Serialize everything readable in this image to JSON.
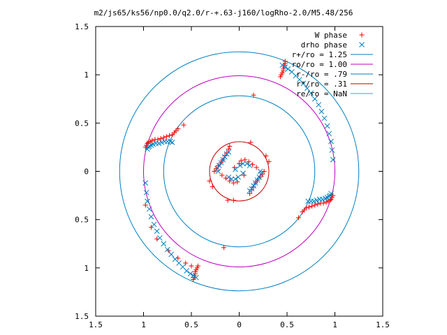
{
  "chart_data": {
    "type": "scatter",
    "title": "m2/js65/ks56/np0.0/q2.0/r-+.63-j160/logRho-2.0/M5.48/256",
    "xlim": [
      -1.5,
      1.5
    ],
    "ylim": [
      -1.5,
      1.5
    ],
    "xticks": [
      -1.5,
      -1,
      -0.5,
      0,
      0.5,
      1,
      1.5
    ],
    "xtick_labels": [
      "1.5",
      "1",
      "0.5",
      "0",
      "0.5",
      "1",
      "1.5"
    ],
    "yticks": [
      1.5,
      1,
      0.5,
      0,
      -0.5,
      -1,
      -1.5
    ],
    "ytick_labels": [
      "1.5",
      "1",
      "0.5",
      "0",
      "0.5",
      "1",
      "1.5"
    ],
    "grid": false,
    "legend_position": "top-right",
    "circles": [
      {
        "name": "r+/ro = 1.25",
        "radius": 1.25,
        "color": "#0080c0"
      },
      {
        "name": "ro/ro = 1.00",
        "radius": 1.0,
        "color": "#c000c0"
      },
      {
        "name": "r-/ro = .79",
        "radius": 0.79,
        "color": "#0080c0"
      },
      {
        "name": "r*/ro = .31",
        "radius": 0.31,
        "color": "#c00000"
      },
      {
        "name": "re/ro = NaN",
        "radius": null,
        "color": "#00c0c0"
      }
    ],
    "series": [
      {
        "name": "W phase",
        "marker": "plus",
        "color": "#ff0000",
        "points": [
          [
            -0.98,
            0.25
          ],
          [
            -0.97,
            0.27
          ],
          [
            -0.96,
            0.29
          ],
          [
            -0.95,
            0.3
          ],
          [
            -0.93,
            0.31
          ],
          [
            -0.91,
            0.32
          ],
          [
            -0.88,
            0.33
          ],
          [
            -0.85,
            0.33
          ],
          [
            -0.82,
            0.34
          ],
          [
            -0.79,
            0.35
          ],
          [
            -0.76,
            0.36
          ],
          [
            -0.73,
            0.37
          ],
          [
            -0.7,
            0.38
          ],
          [
            -0.68,
            0.4
          ],
          [
            -0.66,
            0.42
          ],
          [
            -0.64,
            0.44
          ],
          [
            0.98,
            -0.25
          ],
          [
            0.97,
            -0.27
          ],
          [
            0.96,
            -0.29
          ],
          [
            0.95,
            -0.3
          ],
          [
            0.93,
            -0.31
          ],
          [
            0.91,
            -0.32
          ],
          [
            0.88,
            -0.33
          ],
          [
            0.85,
            -0.33
          ],
          [
            0.82,
            -0.34
          ],
          [
            0.79,
            -0.35
          ],
          [
            0.76,
            -0.36
          ],
          [
            0.73,
            -0.37
          ],
          [
            0.7,
            -0.38
          ],
          [
            0.68,
            -0.4
          ],
          [
            0.66,
            -0.42
          ],
          [
            0.43,
            0.98
          ],
          [
            0.44,
            1.0
          ],
          [
            0.45,
            1.02
          ],
          [
            0.46,
            1.04
          ],
          [
            0.46,
            1.06
          ],
          [
            0.47,
            1.08
          ],
          [
            0.47,
            1.1
          ],
          [
            0.48,
            1.12
          ],
          [
            0.48,
            1.14
          ],
          [
            -0.43,
            -0.98
          ],
          [
            -0.44,
            -1.0
          ],
          [
            -0.45,
            -1.02
          ],
          [
            -0.46,
            -1.04
          ],
          [
            -0.46,
            -1.06
          ],
          [
            -0.47,
            -1.08
          ],
          [
            -0.47,
            -1.1
          ],
          [
            -0.48,
            -1.12
          ],
          [
            -0.86,
            -0.7
          ],
          [
            -0.74,
            -0.82
          ],
          [
            -0.64,
            -0.9
          ],
          [
            -0.56,
            -0.95
          ],
          [
            -0.5,
            -0.98
          ],
          [
            -0.98,
            -0.35
          ],
          [
            -0.92,
            -0.58
          ],
          [
            -0.58,
            0.48
          ],
          [
            0.15,
            0.79
          ],
          [
            -0.16,
            -0.79
          ],
          [
            0.62,
            -0.48
          ],
          [
            -0.26,
            0.0
          ],
          [
            -0.24,
            0.03
          ],
          [
            -0.22,
            0.06
          ],
          [
            -0.19,
            0.09
          ],
          [
            -0.17,
            0.12
          ],
          [
            -0.15,
            0.16
          ],
          [
            -0.13,
            0.19
          ],
          [
            -0.11,
            0.23
          ],
          [
            -0.1,
            0.26
          ],
          [
            0.26,
            0.0
          ],
          [
            0.24,
            -0.03
          ],
          [
            0.22,
            -0.06
          ],
          [
            0.19,
            -0.09
          ],
          [
            0.17,
            -0.12
          ],
          [
            0.15,
            -0.16
          ],
          [
            0.13,
            -0.19
          ],
          [
            0.11,
            -0.23
          ],
          [
            -0.05,
            0.04
          ],
          [
            0.05,
            -0.04
          ],
          [
            0.0,
            0.08
          ],
          [
            0.02,
            0.11
          ],
          [
            0.06,
            0.12
          ],
          [
            0.1,
            0.1
          ],
          [
            0.14,
            0.07
          ],
          [
            0.18,
            0.04
          ],
          [
            -0.02,
            -0.11
          ],
          [
            -0.06,
            -0.12
          ],
          [
            -0.1,
            -0.1
          ],
          [
            -0.14,
            -0.07
          ],
          [
            -0.18,
            -0.04
          ],
          [
            -0.31,
            -0.1
          ],
          [
            -0.28,
            -0.16
          ],
          [
            0.31,
            0.1
          ],
          [
            0.28,
            0.16
          ],
          [
            -0.12,
            -0.3
          ],
          [
            0.12,
            0.3
          ],
          [
            -0.06,
            -0.3
          ]
        ]
      },
      {
        "name": "drho phase",
        "marker": "cross",
        "color": "#0080c0",
        "points": [
          [
            -0.96,
            0.23
          ],
          [
            -0.95,
            0.25
          ],
          [
            -0.94,
            0.26
          ],
          [
            -0.92,
            0.27
          ],
          [
            -0.9,
            0.28
          ],
          [
            -0.87,
            0.29
          ],
          [
            -0.84,
            0.29
          ],
          [
            -0.81,
            0.3
          ],
          [
            -0.78,
            0.31
          ],
          [
            -0.75,
            0.31
          ],
          [
            -0.72,
            0.31
          ],
          [
            -0.7,
            0.3
          ],
          [
            0.96,
            -0.23
          ],
          [
            0.95,
            -0.25
          ],
          [
            0.94,
            -0.26
          ],
          [
            0.92,
            -0.27
          ],
          [
            0.9,
            -0.28
          ],
          [
            0.87,
            -0.29
          ],
          [
            0.84,
            -0.29
          ],
          [
            0.81,
            -0.3
          ],
          [
            0.78,
            -0.31
          ],
          [
            0.75,
            -0.31
          ],
          [
            0.72,
            -0.31
          ],
          [
            0.45,
            1.1
          ],
          [
            0.48,
            1.08
          ],
          [
            0.51,
            1.06
          ],
          [
            0.55,
            1.03
          ],
          [
            0.59,
            0.99
          ],
          [
            0.63,
            0.95
          ],
          [
            0.67,
            0.91
          ],
          [
            0.71,
            0.86
          ],
          [
            0.75,
            0.81
          ],
          [
            0.79,
            0.75
          ],
          [
            0.83,
            0.69
          ],
          [
            0.86,
            0.62
          ],
          [
            0.89,
            0.55
          ],
          [
            0.92,
            0.47
          ],
          [
            0.94,
            0.39
          ],
          [
            0.96,
            0.31
          ],
          [
            0.97,
            0.22
          ],
          [
            0.98,
            0.12
          ],
          [
            -0.45,
            -1.1
          ],
          [
            -0.48,
            -1.08
          ],
          [
            -0.51,
            -1.06
          ],
          [
            -0.55,
            -1.03
          ],
          [
            -0.59,
            -0.99
          ],
          [
            -0.63,
            -0.95
          ],
          [
            -0.67,
            -0.91
          ],
          [
            -0.71,
            -0.86
          ],
          [
            -0.75,
            -0.81
          ],
          [
            -0.79,
            -0.75
          ],
          [
            -0.83,
            -0.69
          ],
          [
            -0.86,
            -0.62
          ],
          [
            -0.89,
            -0.55
          ],
          [
            -0.92,
            -0.47
          ],
          [
            -0.94,
            -0.39
          ],
          [
            -0.96,
            -0.31
          ],
          [
            -0.97,
            -0.22
          ],
          [
            -0.98,
            -0.12
          ],
          [
            -0.23,
            0.03
          ],
          [
            -0.21,
            0.06
          ],
          [
            -0.19,
            0.09
          ],
          [
            -0.17,
            0.12
          ],
          [
            -0.15,
            0.15
          ],
          [
            -0.13,
            0.18
          ],
          [
            -0.11,
            0.2
          ],
          [
            0.23,
            -0.03
          ],
          [
            0.21,
            -0.06
          ],
          [
            0.19,
            -0.09
          ],
          [
            0.17,
            -0.12
          ],
          [
            0.15,
            -0.15
          ],
          [
            0.13,
            -0.18
          ],
          [
            0.11,
            -0.2
          ],
          [
            -0.04,
            0.02
          ],
          [
            0.04,
            -0.02
          ],
          [
            0.01,
            0.06
          ],
          [
            0.04,
            0.08
          ],
          [
            0.08,
            0.08
          ],
          [
            0.11,
            0.06
          ],
          [
            -0.01,
            -0.06
          ],
          [
            -0.04,
            -0.08
          ],
          [
            -0.08,
            -0.08
          ],
          [
            -0.11,
            -0.06
          ],
          [
            0.22,
            0.0
          ],
          [
            -0.22,
            0.0
          ]
        ]
      }
    ]
  }
}
